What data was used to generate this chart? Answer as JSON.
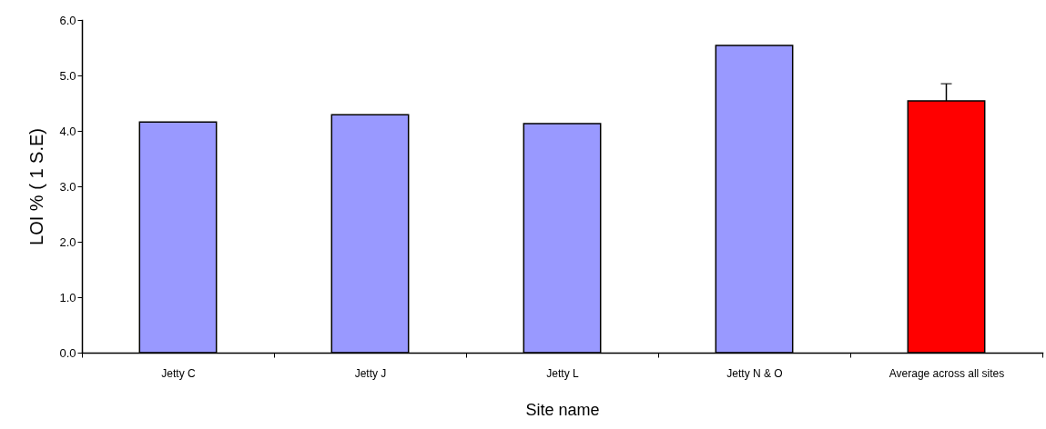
{
  "chart_data": {
    "type": "bar",
    "xlabel": "Site name",
    "ylabel": "LOI % ( 1 S.E)",
    "categories": [
      "Jetty C",
      "Jetty J",
      "Jetty L",
      "Jetty N & O",
      "Average across all sites"
    ],
    "values": [
      4.16,
      4.29,
      4.13,
      5.54,
      4.54
    ],
    "colors": [
      "#9999ff",
      "#9999ff",
      "#9999ff",
      "#9999ff",
      "#ff0000"
    ],
    "errors": [
      null,
      null,
      null,
      null,
      [
        4.54,
        4.85
      ]
    ],
    "ylim": [
      0,
      6
    ],
    "yticks": [
      {
        "value": 0,
        "label": "0.0"
      },
      {
        "value": 1,
        "label": "1.0"
      },
      {
        "value": 2,
        "label": "2.0"
      },
      {
        "value": 3,
        "label": "3.0"
      },
      {
        "value": 4,
        "label": "4.0"
      },
      {
        "value": 5,
        "label": "5.0"
      },
      {
        "value": 6,
        "label": "6.0"
      }
    ],
    "grid": false
  }
}
